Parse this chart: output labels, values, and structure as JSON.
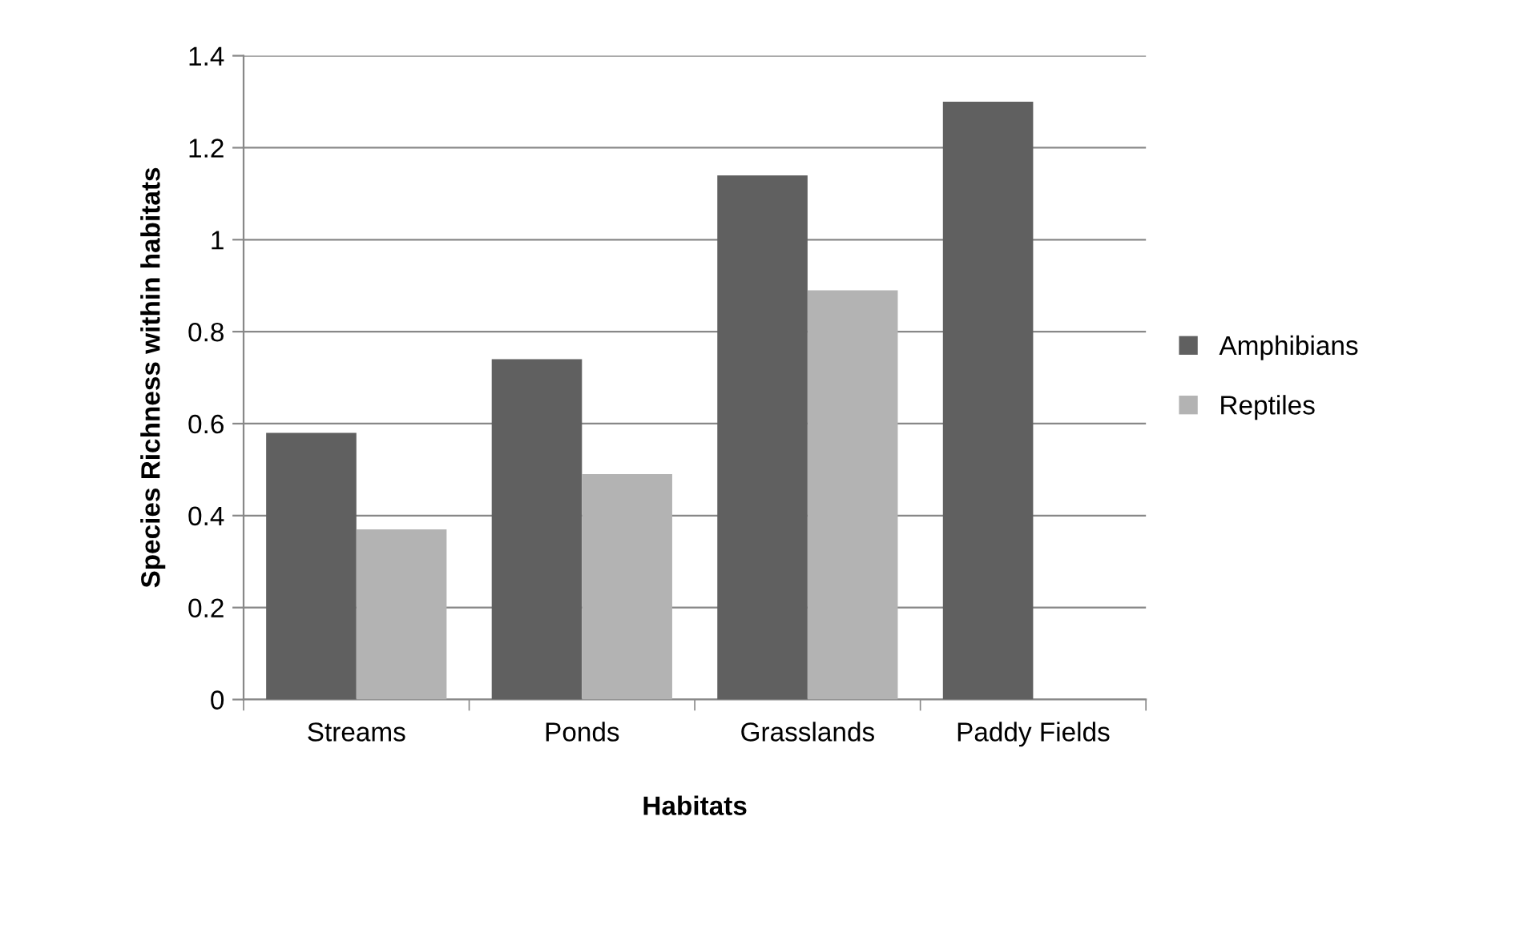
{
  "chart_data": {
    "type": "bar",
    "xlabel": "Habitats",
    "ylabel": "Species Richness within habitats",
    "categories": [
      "Streams",
      "Ponds",
      "Grasslands",
      "Paddy Fields"
    ],
    "series": [
      {
        "name": "Amphibians",
        "color": "#606060",
        "values": [
          0.58,
          0.74,
          1.14,
          1.3
        ]
      },
      {
        "name": "Reptiles",
        "color": "#b3b3b3",
        "values": [
          0.37,
          0.49,
          0.89,
          null
        ]
      }
    ],
    "ylim": [
      0,
      1.4
    ],
    "yticks": [
      0,
      0.2,
      0.4,
      0.6,
      0.8,
      1,
      1.2,
      1.4
    ],
    "grid": "y",
    "legend": "right"
  }
}
